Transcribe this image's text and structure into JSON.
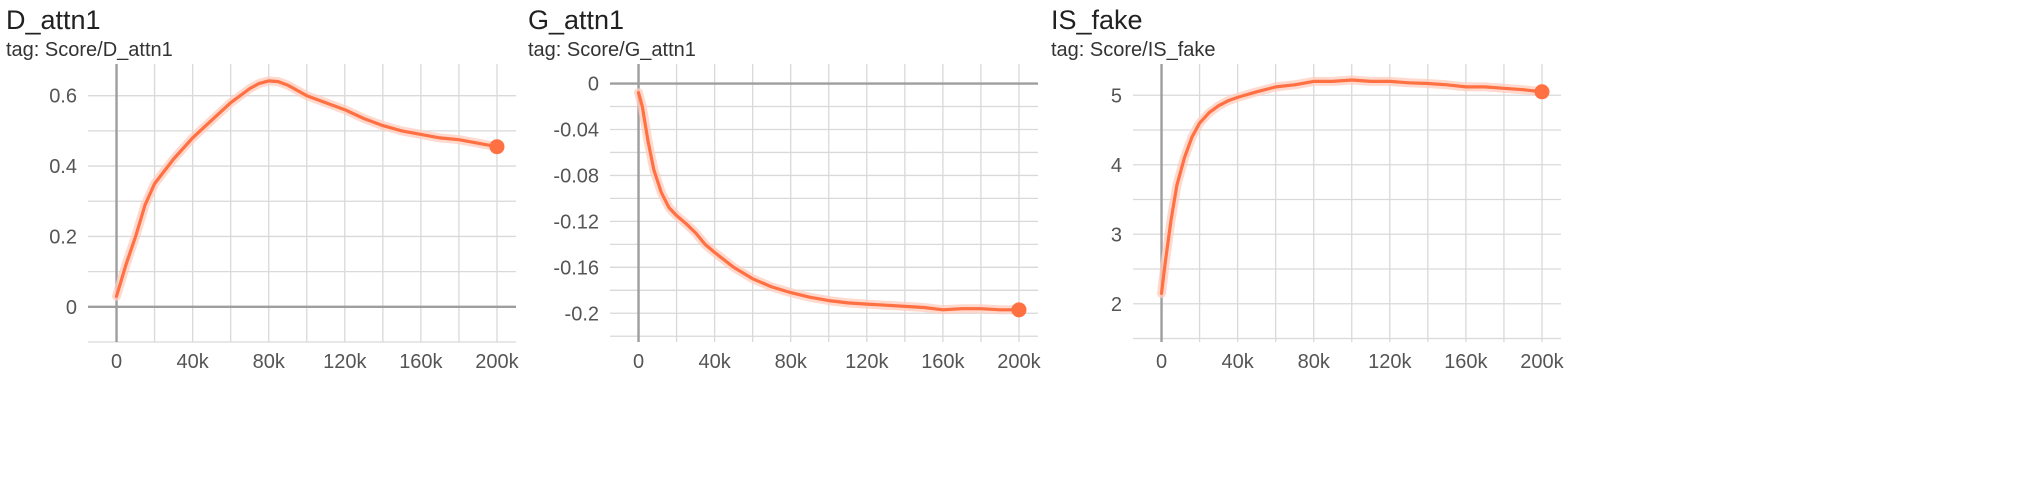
{
  "cards": [
    {
      "title": "D_attn1",
      "tag": "tag: Score/D_attn1"
    },
    {
      "title": "G_attn1",
      "tag": "tag: Score/G_attn1"
    },
    {
      "title": "IS_fake",
      "tag": "tag: Score/IS_fake"
    }
  ],
  "colors": {
    "line": "#ff7043",
    "raw": "#ffccbc",
    "grid": "#d9d9d9",
    "zero_axis": "#9e9e9e"
  },
  "chart_data": [
    {
      "type": "line",
      "title": "D_attn1",
      "subtitle": "tag: Score/D_attn1",
      "xlabel": "",
      "ylabel": "",
      "xlim": [
        -15000,
        210000
      ],
      "ylim": [
        -0.1,
        0.69
      ],
      "xticks": [
        0,
        40000,
        80000,
        120000,
        160000,
        200000
      ],
      "xtick_labels": [
        "0",
        "40k",
        "80k",
        "120k",
        "160k",
        "200k"
      ],
      "yticks": [
        0,
        0.2,
        0.4,
        0.6
      ],
      "ytick_labels": [
        "0",
        "0.2",
        "0.4",
        "0.6"
      ],
      "grid": true,
      "series": [
        {
          "x": [
            0,
            5000,
            10000,
            15000,
            20000,
            30000,
            40000,
            50000,
            60000,
            70000,
            75000,
            80000,
            85000,
            90000,
            100000,
            110000,
            120000,
            130000,
            140000,
            150000,
            160000,
            170000,
            180000,
            190000,
            200000
          ],
          "y": [
            0.03,
            0.12,
            0.2,
            0.29,
            0.35,
            0.42,
            0.48,
            0.53,
            0.58,
            0.62,
            0.635,
            0.642,
            0.64,
            0.63,
            0.6,
            0.58,
            0.56,
            0.535,
            0.515,
            0.5,
            0.49,
            0.48,
            0.475,
            0.465,
            0.455
          ]
        }
      ]
    },
    {
      "type": "line",
      "title": "G_attn1",
      "subtitle": "tag: Score/G_attn1",
      "xlabel": "",
      "ylabel": "",
      "xlim": [
        -15000,
        210000
      ],
      "ylim": [
        -0.225,
        0.017
      ],
      "xticks": [
        0,
        40000,
        80000,
        120000,
        160000,
        200000
      ],
      "xtick_labels": [
        "0",
        "40k",
        "80k",
        "120k",
        "160k",
        "200k"
      ],
      "yticks": [
        0,
        -0.04,
        -0.08,
        -0.12,
        -0.16,
        -0.2
      ],
      "ytick_labels": [
        "0",
        "-0.04",
        "-0.08",
        "-0.12",
        "-0.16",
        "-0.2"
      ],
      "grid": true,
      "series": [
        {
          "x": [
            0,
            2000,
            5000,
            8000,
            12000,
            16000,
            20000,
            25000,
            30000,
            35000,
            40000,
            50000,
            60000,
            70000,
            80000,
            90000,
            100000,
            110000,
            120000,
            130000,
            140000,
            150000,
            160000,
            170000,
            180000,
            190000,
            200000
          ],
          "y": [
            -0.008,
            -0.02,
            -0.05,
            -0.075,
            -0.095,
            -0.108,
            -0.115,
            -0.122,
            -0.13,
            -0.14,
            -0.147,
            -0.16,
            -0.17,
            -0.177,
            -0.182,
            -0.186,
            -0.189,
            -0.191,
            -0.192,
            -0.193,
            -0.194,
            -0.195,
            -0.197,
            -0.196,
            -0.196,
            -0.197,
            -0.197
          ]
        }
      ]
    },
    {
      "type": "line",
      "title": "IS_fake",
      "subtitle": "tag: Score/IS_fake",
      "xlabel": "",
      "ylabel": "",
      "xlim": [
        -15000,
        210000
      ],
      "ylim": [
        1.45,
        5.45
      ],
      "xticks": [
        0,
        40000,
        80000,
        120000,
        160000,
        200000
      ],
      "xtick_labels": [
        "0",
        "40k",
        "80k",
        "120k",
        "160k",
        "200k"
      ],
      "yticks": [
        2,
        3,
        4,
        5
      ],
      "ytick_labels": [
        "2",
        "3",
        "4",
        "5"
      ],
      "grid": true,
      "series": [
        {
          "x": [
            0,
            2000,
            5000,
            8000,
            12000,
            16000,
            20000,
            25000,
            30000,
            35000,
            40000,
            50000,
            60000,
            70000,
            80000,
            90000,
            100000,
            110000,
            120000,
            130000,
            140000,
            150000,
            160000,
            170000,
            180000,
            190000,
            200000
          ],
          "y": [
            2.15,
            2.6,
            3.2,
            3.7,
            4.1,
            4.4,
            4.6,
            4.75,
            4.85,
            4.92,
            4.97,
            5.05,
            5.12,
            5.15,
            5.2,
            5.2,
            5.22,
            5.2,
            5.2,
            5.18,
            5.17,
            5.15,
            5.12,
            5.12,
            5.1,
            5.08,
            5.05
          ]
        }
      ]
    }
  ]
}
